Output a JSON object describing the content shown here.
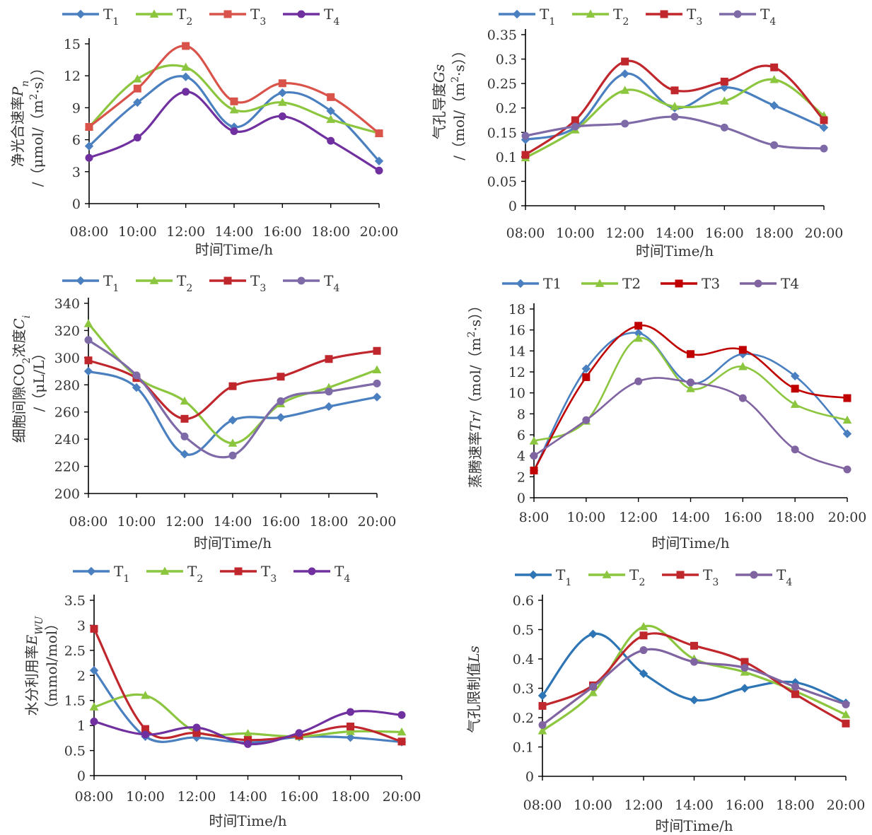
{
  "panels": [
    {
      "legend": [
        {
          "name": "T",
          "sub": "1"
        },
        {
          "name": "T",
          "sub": "2"
        },
        {
          "name": "T",
          "sub": "3"
        },
        {
          "name": "T",
          "sub": "4"
        }
      ],
      "ylabel_lines": [
        [
          {
            "t": "净光合速率"
          },
          {
            "t": "P",
            "i": true
          },
          {
            "t": "n",
            "i": true,
            "sub": true
          }
        ],
        [
          {
            "t": "/（μmol/（m"
          },
          {
            "t": "2",
            "sup": true
          },
          {
            "t": "·s））"
          }
        ]
      ],
      "ytick_labels": [
        "0",
        "3",
        "6",
        "9",
        "12",
        "15"
      ],
      "xtick_labels": [
        "08:00",
        "10:00",
        "12:00",
        "14:00",
        "16:00",
        "18:00",
        "20:00"
      ],
      "xlabel": "时间Time/h"
    },
    {
      "legend": [
        {
          "name": "T",
          "sub": "1"
        },
        {
          "name": "T",
          "sub": "2"
        },
        {
          "name": "T",
          "sub": "3"
        },
        {
          "name": "T",
          "sub": "4"
        }
      ],
      "ylabel_lines": [
        [
          {
            "t": "气孔导度"
          },
          {
            "t": "Gs",
            "i": true
          }
        ],
        [
          {
            "t": "/（mol/（m"
          },
          {
            "t": "2",
            "sup": true
          },
          {
            "t": "·s））"
          }
        ]
      ],
      "ytick_labels": [
        "0",
        "0.05",
        "0.1",
        "0.15",
        "0.2",
        "0.25",
        "0.3",
        "0.35"
      ],
      "xtick_labels": [
        "08:00",
        "10:00",
        "12:00",
        "14:00",
        "16:00",
        "18:00",
        "20:00"
      ],
      "xlabel": "时间Time/h"
    },
    {
      "legend": [
        {
          "name": "T",
          "sub": "1"
        },
        {
          "name": "T",
          "sub": "2"
        },
        {
          "name": "T",
          "sub": "3"
        },
        {
          "name": "T",
          "sub": "4"
        }
      ],
      "ylabel_lines": [
        [
          {
            "t": "细胞间隙CO"
          },
          {
            "t": "2",
            "sub": true
          },
          {
            "t": "浓度"
          },
          {
            "t": "C",
            "i": true
          },
          {
            "t": "i",
            "i": true,
            "sub": true
          }
        ],
        [
          {
            "t": "/（μL/L）"
          }
        ]
      ],
      "ytick_labels": [
        "200",
        "220",
        "240",
        "260",
        "280",
        "300",
        "320",
        "340"
      ],
      "xtick_labels": [
        "08:00",
        "10:00",
        "12:00",
        "14:00",
        "16:00",
        "18:00",
        "20:00"
      ],
      "xlabel": "时间Time/h"
    },
    {
      "legend": [
        {
          "name": "T1"
        },
        {
          "name": "T2"
        },
        {
          "name": "T3"
        },
        {
          "name": "T4"
        }
      ],
      "ylabel_lines": [
        [
          {
            "t": "蒸腾速率"
          },
          {
            "t": "Tr",
            "i": true
          },
          {
            "t": "/（mol/（m"
          },
          {
            "t": "2",
            "sup": true
          },
          {
            "t": "·s））"
          }
        ]
      ],
      "ytick_labels": [
        "0",
        "2",
        "4",
        "6",
        "8",
        "10",
        "12",
        "14",
        "16",
        "18"
      ],
      "xtick_labels": [
        "8:00",
        "10:00",
        "12:00",
        "14:00",
        "16:00",
        "18:00",
        "20:00"
      ],
      "xlabel": "时间Time/h"
    },
    {
      "legend": [
        {
          "name": "T",
          "sub": "1"
        },
        {
          "name": "T",
          "sub": "2"
        },
        {
          "name": "T",
          "sub": "3"
        },
        {
          "name": "T",
          "sub": "4"
        }
      ],
      "ylabel_lines": [
        [
          {
            "t": "水分利用率"
          },
          {
            "t": "E",
            "i": true
          },
          {
            "t": "WU",
            "i": true,
            "sub": true
          }
        ],
        [
          {
            "t": "（mmol/mol）"
          }
        ]
      ],
      "ytick_labels": [
        "0",
        "0.5",
        "1",
        "1.5",
        "2",
        "2.5",
        "3",
        "3.5"
      ],
      "xtick_labels": [
        "08:00",
        "10:00",
        "12:00",
        "14:00",
        "16:00",
        "18:00",
        "20:00"
      ],
      "xlabel": "时间Time/h"
    },
    {
      "legend": [
        {
          "name": "T",
          "sub": "1"
        },
        {
          "name": "T",
          "sub": "2"
        },
        {
          "name": "T",
          "sub": "3"
        },
        {
          "name": "T",
          "sub": "4"
        }
      ],
      "ylabel_lines": [
        [
          {
            "t": "气孔限制值"
          },
          {
            "t": "Ls",
            "i": true
          }
        ]
      ],
      "ytick_labels": [
        "0",
        "0.1",
        "0.2",
        "0.3",
        "0.4",
        "0.5",
        "0.6"
      ],
      "xtick_labels": [
        "08:00",
        "10:00",
        "12:00",
        "14:00",
        "16:00",
        "18:00",
        "20:00"
      ],
      "xlabel": "时间Time/h"
    }
  ],
  "chart_data": [
    {
      "type": "line",
      "x": [
        "08:00",
        "10:00",
        "12:00",
        "14:00",
        "16:00",
        "18:00",
        "20:00"
      ],
      "ylim": [
        0,
        15
      ],
      "series": [
        {
          "name": "T1",
          "color": "#4a7fc0",
          "marker": "diamond",
          "values": [
            5.4,
            9.5,
            11.9,
            7.2,
            10.4,
            8.7,
            4.0
          ]
        },
        {
          "name": "T2",
          "color": "#8cc63f",
          "marker": "triangle",
          "values": [
            7.2,
            11.7,
            12.8,
            8.8,
            9.5,
            7.9,
            6.6
          ]
        },
        {
          "name": "T3",
          "color": "#d9534a",
          "marker": "square",
          "values": [
            7.2,
            10.8,
            14.8,
            9.6,
            11.3,
            10.0,
            6.6
          ]
        },
        {
          "name": "T4",
          "color": "#7030a0",
          "marker": "circle",
          "values": [
            4.3,
            6.2,
            10.5,
            6.8,
            8.2,
            5.9,
            3.1
          ]
        }
      ]
    },
    {
      "type": "line",
      "x": [
        "08:00",
        "10:00",
        "12:00",
        "14:00",
        "16:00",
        "18:00",
        "20:00"
      ],
      "ylim": [
        0,
        0.35
      ],
      "series": [
        {
          "name": "T1",
          "color": "#4a7fc0",
          "marker": "diamond",
          "values": [
            0.135,
            0.16,
            0.27,
            0.2,
            0.242,
            0.205,
            0.16
          ]
        },
        {
          "name": "T2",
          "color": "#8cc63f",
          "marker": "triangle",
          "values": [
            0.098,
            0.155,
            0.236,
            0.203,
            0.214,
            0.258,
            0.184
          ]
        },
        {
          "name": "T3",
          "color": "#c0272d",
          "marker": "square",
          "values": [
            0.104,
            0.175,
            0.295,
            0.236,
            0.254,
            0.283,
            0.175
          ]
        },
        {
          "name": "T4",
          "color": "#7f6aa8",
          "marker": "circle",
          "values": [
            0.143,
            0.162,
            0.168,
            0.182,
            0.16,
            0.124,
            0.117
          ]
        }
      ]
    },
    {
      "type": "line",
      "x": [
        "08:00",
        "10:00",
        "12:00",
        "14:00",
        "16:00",
        "18:00",
        "20:00"
      ],
      "ylim": [
        200,
        340
      ],
      "series": [
        {
          "name": "T1",
          "color": "#4a7fc0",
          "marker": "diamond",
          "values": [
            290,
            278,
            229,
            254,
            256,
            264,
            271
          ]
        },
        {
          "name": "T2",
          "color": "#8cc63f",
          "marker": "triangle",
          "values": [
            325,
            286,
            268,
            237,
            266,
            278,
            291
          ]
        },
        {
          "name": "T3",
          "color": "#c0272d",
          "marker": "square",
          "values": [
            298,
            285,
            255,
            279,
            286,
            299,
            305
          ]
        },
        {
          "name": "T4",
          "color": "#7f6aa8",
          "marker": "circle",
          "values": [
            313,
            287,
            242,
            228,
            268,
            275,
            281
          ]
        }
      ]
    },
    {
      "type": "line",
      "x": [
        "8:00",
        "10:00",
        "12:00",
        "14:00",
        "16:00",
        "18:00",
        "20:00"
      ],
      "ylim": [
        0,
        18
      ],
      "series": [
        {
          "name": "T1",
          "color": "#4a7fc0",
          "marker": "diamond",
          "values": [
            2.6,
            12.3,
            15.7,
            10.9,
            13.7,
            11.6,
            6.1
          ]
        },
        {
          "name": "T2",
          "color": "#8cc63f",
          "marker": "triangle",
          "values": [
            5.4,
            7.3,
            15.2,
            10.4,
            12.5,
            8.9,
            7.4
          ]
        },
        {
          "name": "T3",
          "color": "#c00000",
          "marker": "square",
          "values": [
            2.6,
            11.5,
            16.4,
            13.7,
            14.1,
            10.4,
            9.5
          ]
        },
        {
          "name": "T4",
          "color": "#8064a2",
          "marker": "circle",
          "values": [
            4.0,
            7.4,
            11.1,
            11.0,
            9.5,
            4.6,
            2.7
          ]
        }
      ]
    },
    {
      "type": "line",
      "x": [
        "08:00",
        "10:00",
        "12:00",
        "14:00",
        "16:00",
        "18:00",
        "20:00"
      ],
      "ylim": [
        0,
        3.5
      ],
      "series": [
        {
          "name": "T1",
          "color": "#4a7fc0",
          "marker": "diamond",
          "values": [
            2.1,
            0.78,
            0.76,
            0.66,
            0.77,
            0.76,
            0.67
          ]
        },
        {
          "name": "T2",
          "color": "#8cc63f",
          "marker": "triangle",
          "values": [
            1.37,
            1.6,
            0.87,
            0.84,
            0.78,
            0.88,
            0.87
          ]
        },
        {
          "name": "T3",
          "color": "#c0272d",
          "marker": "square",
          "values": [
            2.93,
            0.93,
            0.85,
            0.71,
            0.8,
            0.98,
            0.68
          ]
        },
        {
          "name": "T4",
          "color": "#7030a0",
          "marker": "circle",
          "values": [
            1.08,
            0.82,
            0.96,
            0.63,
            0.85,
            1.27,
            1.21
          ]
        }
      ]
    },
    {
      "type": "line",
      "x": [
        "08:00",
        "10:00",
        "12:00",
        "14:00",
        "16:00",
        "18:00",
        "20:00"
      ],
      "ylim": [
        0,
        0.6
      ],
      "series": [
        {
          "name": "T1",
          "color": "#2e75b6",
          "marker": "diamond",
          "values": [
            0.275,
            0.485,
            0.35,
            0.26,
            0.3,
            0.32,
            0.25
          ]
        },
        {
          "name": "T2",
          "color": "#8cc63f",
          "marker": "triangle",
          "values": [
            0.155,
            0.285,
            0.51,
            0.4,
            0.355,
            0.29,
            0.21
          ]
        },
        {
          "name": "T3",
          "color": "#c0272d",
          "marker": "square",
          "values": [
            0.24,
            0.31,
            0.48,
            0.445,
            0.39,
            0.28,
            0.18
          ]
        },
        {
          "name": "T4",
          "color": "#8064a2",
          "marker": "circle",
          "values": [
            0.175,
            0.305,
            0.43,
            0.39,
            0.37,
            0.305,
            0.245
          ]
        }
      ]
    }
  ]
}
